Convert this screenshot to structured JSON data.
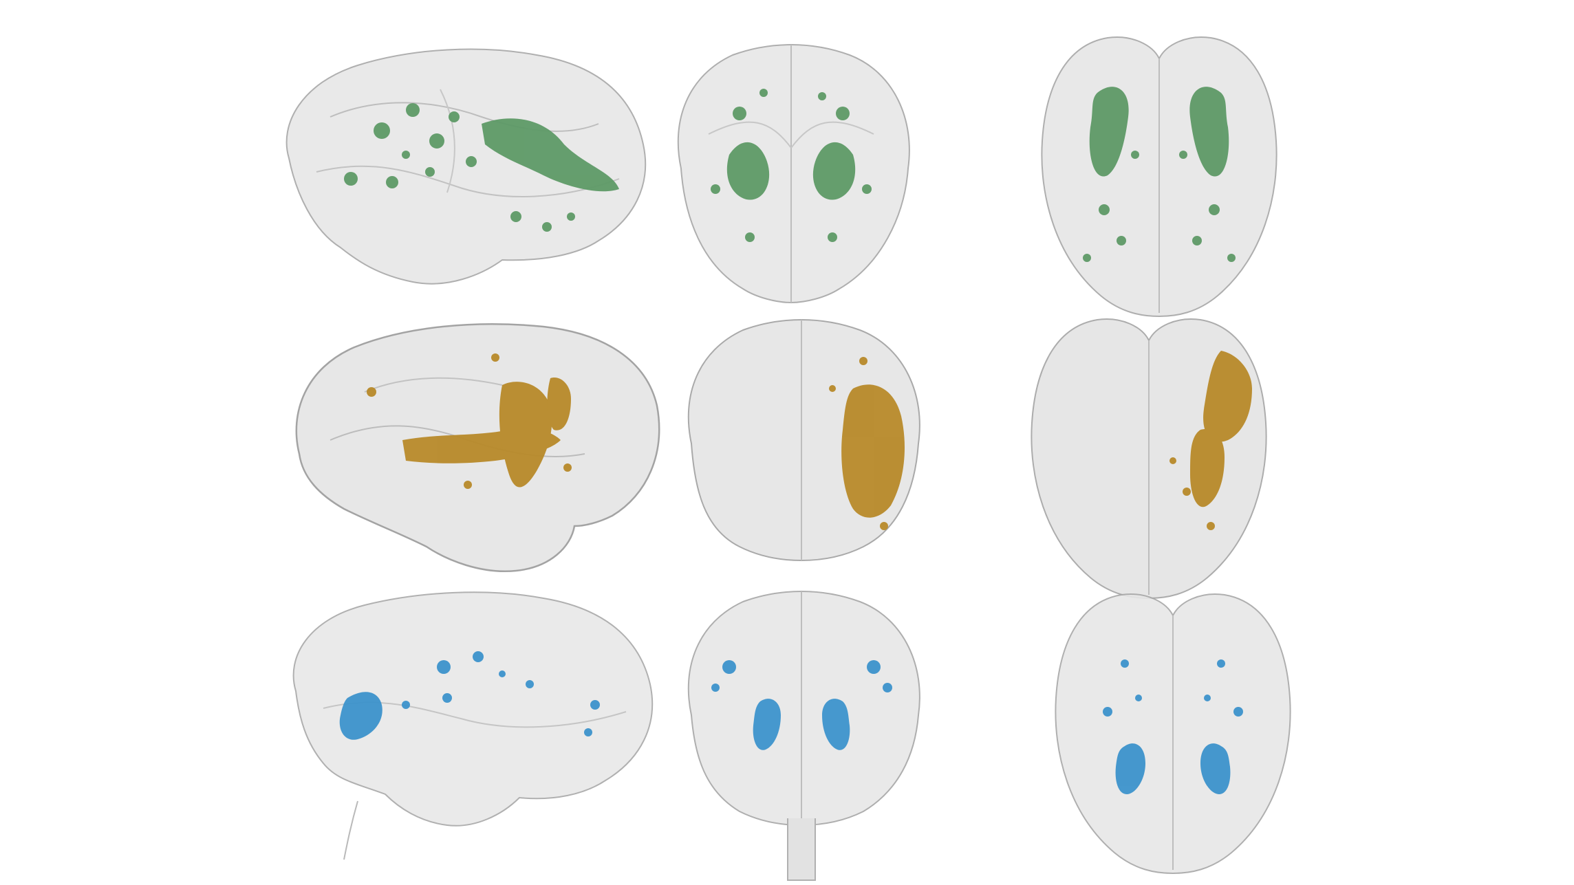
{
  "figure": {
    "description_free": true,
    "rows": [
      {
        "name": "row-green",
        "lesion_color": "#5e9a67",
        "panels": [
          {
            "view": "lateral",
            "cx": 0,
            "cy": 0
          },
          {
            "view": "coronal",
            "cx": 0,
            "cy": 0
          },
          {
            "view": "axial",
            "cx": 0,
            "cy": 0
          }
        ]
      },
      {
        "name": "row-orange",
        "lesion_color": "#b88a2a",
        "panels": [
          {
            "view": "lateral"
          },
          {
            "view": "coronal"
          },
          {
            "view": "axial"
          }
        ]
      },
      {
        "name": "row-blue",
        "lesion_color": "#3d93cc",
        "panels": [
          {
            "view": "lateral"
          },
          {
            "view": "coronal"
          },
          {
            "view": "axial"
          }
        ]
      }
    ],
    "brain_color": "#c9c9c9",
    "brain_outline": "#9a9a9a"
  }
}
